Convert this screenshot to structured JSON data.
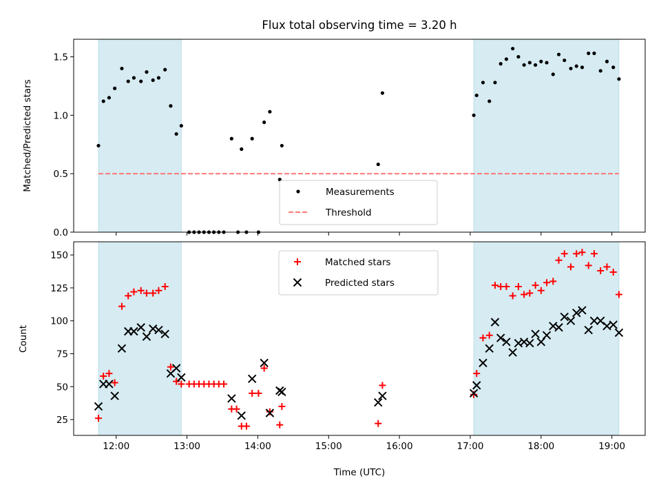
{
  "figure": {
    "title": "Flux total observing time = 3.20 h",
    "xlabel": "Time (UTC)"
  },
  "colors": {
    "shade": "#add8e6",
    "threshold": "#ff7777",
    "measurement": "#000000",
    "matched": "#ff0000",
    "predicted": "#000000"
  },
  "chart_data": [
    {
      "type": "scatter",
      "ylabel": "Matched/Predicted stars",
      "xlim": [
        11.4,
        19.47
      ],
      "ylim": [
        0.0,
        1.65
      ],
      "x_ticks": [
        12,
        13,
        14,
        15,
        16,
        17,
        18,
        19
      ],
      "y_ticks": [
        0.0,
        0.5,
        1.0,
        1.5
      ],
      "y_tick_labels": [
        "0.0",
        "0.5",
        "1.0",
        "1.5"
      ],
      "shaded_regions": [
        [
          11.75,
          12.92
        ],
        [
          17.05,
          19.1
        ]
      ],
      "threshold": {
        "name": "Threshold",
        "y": 0.5,
        "x_range": [
          11.75,
          19.1
        ],
        "style": "dashed"
      },
      "legend": {
        "location": "lower center",
        "entries": [
          "Measurements",
          "Threshold"
        ]
      },
      "series": [
        {
          "name": "Measurements",
          "marker": "dot",
          "points": [
            [
              11.75,
              0.74
            ],
            [
              11.82,
              1.12
            ],
            [
              11.9,
              1.15
            ],
            [
              11.98,
              1.23
            ],
            [
              12.08,
              1.4
            ],
            [
              12.17,
              1.29
            ],
            [
              12.25,
              1.32
            ],
            [
              12.35,
              1.29
            ],
            [
              12.43,
              1.37
            ],
            [
              12.52,
              1.3
            ],
            [
              12.6,
              1.32
            ],
            [
              12.69,
              1.39
            ],
            [
              12.77,
              1.08
            ],
            [
              12.85,
              0.84
            ],
            [
              12.92,
              0.91
            ],
            [
              13.03,
              0.0
            ],
            [
              13.1,
              0.0
            ],
            [
              13.17,
              0.0
            ],
            [
              13.24,
              0.0
            ],
            [
              13.31,
              0.0
            ],
            [
              13.38,
              0.0
            ],
            [
              13.45,
              0.0
            ],
            [
              13.52,
              0.0
            ],
            [
              13.63,
              0.8
            ],
            [
              13.72,
              0.0
            ],
            [
              13.77,
              0.71
            ],
            [
              13.84,
              0.0
            ],
            [
              13.92,
              0.8
            ],
            [
              14.01,
              0.0
            ],
            [
              14.09,
              0.94
            ],
            [
              14.17,
              1.03
            ],
            [
              14.31,
              0.45
            ],
            [
              14.34,
              0.74
            ],
            [
              15.7,
              0.58
            ],
            [
              15.76,
              1.19
            ],
            [
              17.05,
              1.0
            ],
            [
              17.09,
              1.17
            ],
            [
              17.18,
              1.28
            ],
            [
              17.27,
              1.12
            ],
            [
              17.35,
              1.28
            ],
            [
              17.43,
              1.44
            ],
            [
              17.51,
              1.48
            ],
            [
              17.6,
              1.57
            ],
            [
              17.68,
              1.5
            ],
            [
              17.76,
              1.43
            ],
            [
              17.84,
              1.45
            ],
            [
              17.92,
              1.43
            ],
            [
              18.0,
              1.46
            ],
            [
              18.08,
              1.45
            ],
            [
              18.17,
              1.35
            ],
            [
              18.25,
              1.52
            ],
            [
              18.33,
              1.47
            ],
            [
              18.42,
              1.4
            ],
            [
              18.5,
              1.42
            ],
            [
              18.58,
              1.41
            ],
            [
              18.67,
              1.53
            ],
            [
              18.75,
              1.53
            ],
            [
              18.84,
              1.38
            ],
            [
              18.93,
              1.46
            ],
            [
              19.02,
              1.41
            ],
            [
              19.1,
              1.31
            ]
          ]
        }
      ]
    },
    {
      "type": "scatter",
      "ylabel": "Count",
      "xlabel": "Time (UTC)",
      "xlim": [
        11.4,
        19.47
      ],
      "ylim": [
        13,
        160
      ],
      "x_ticks": [
        12,
        13,
        14,
        15,
        16,
        17,
        18,
        19
      ],
      "x_tick_labels": [
        "12:00",
        "13:00",
        "14:00",
        "15:00",
        "16:00",
        "17:00",
        "18:00",
        "19:00"
      ],
      "y_ticks": [
        25,
        50,
        75,
        100,
        125,
        150
      ],
      "y_tick_labels": [
        "25",
        "50",
        "75",
        "100",
        "125",
        "150"
      ],
      "shaded_regions": [
        [
          11.75,
          12.92
        ],
        [
          17.05,
          19.1
        ]
      ],
      "legend": {
        "location": "upper center",
        "entries": [
          "Matched stars",
          "Predicted stars"
        ]
      },
      "series": [
        {
          "name": "Matched stars",
          "marker": "plus",
          "points": [
            [
              11.75,
              26
            ],
            [
              11.82,
              58
            ],
            [
              11.9,
              60
            ],
            [
              11.98,
              53
            ],
            [
              12.08,
              111
            ],
            [
              12.17,
              119
            ],
            [
              12.25,
              122
            ],
            [
              12.35,
              123
            ],
            [
              12.43,
              121
            ],
            [
              12.52,
              121
            ],
            [
              12.6,
              123
            ],
            [
              12.69,
              126
            ],
            [
              12.77,
              65
            ],
            [
              12.85,
              54
            ],
            [
              12.92,
              52
            ],
            [
              13.03,
              52
            ],
            [
              13.1,
              52
            ],
            [
              13.17,
              52
            ],
            [
              13.24,
              52
            ],
            [
              13.31,
              52
            ],
            [
              13.38,
              52
            ],
            [
              13.45,
              52
            ],
            [
              13.52,
              52
            ],
            [
              13.63,
              33
            ],
            [
              13.7,
              33
            ],
            [
              13.77,
              20
            ],
            [
              13.84,
              20
            ],
            [
              13.92,
              45
            ],
            [
              14.01,
              45
            ],
            [
              14.09,
              64
            ],
            [
              14.17,
              31
            ],
            [
              14.31,
              21
            ],
            [
              14.34,
              35
            ],
            [
              15.7,
              22
            ],
            [
              15.76,
              51
            ],
            [
              17.05,
              44
            ],
            [
              17.09,
              60
            ],
            [
              17.18,
              87
            ],
            [
              17.27,
              89
            ],
            [
              17.35,
              127
            ],
            [
              17.43,
              126
            ],
            [
              17.51,
              126
            ],
            [
              17.6,
              119
            ],
            [
              17.68,
              126
            ],
            [
              17.76,
              120
            ],
            [
              17.84,
              121
            ],
            [
              17.92,
              127
            ],
            [
              18.0,
              123
            ],
            [
              18.08,
              129
            ],
            [
              18.17,
              130
            ],
            [
              18.25,
              146
            ],
            [
              18.33,
              151
            ],
            [
              18.42,
              141
            ],
            [
              18.5,
              151
            ],
            [
              18.58,
              152
            ],
            [
              18.67,
              142
            ],
            [
              18.75,
              151
            ],
            [
              18.84,
              138
            ],
            [
              18.93,
              141
            ],
            [
              19.02,
              137
            ],
            [
              19.1,
              120
            ]
          ]
        },
        {
          "name": "Predicted stars",
          "marker": "x",
          "points": [
            [
              11.75,
              35
            ],
            [
              11.82,
              52
            ],
            [
              11.9,
              52
            ],
            [
              11.98,
              43
            ],
            [
              12.08,
              79
            ],
            [
              12.17,
              92
            ],
            [
              12.25,
              92
            ],
            [
              12.35,
              95
            ],
            [
              12.43,
              88
            ],
            [
              12.52,
              94
            ],
            [
              12.6,
              93
            ],
            [
              12.69,
              90
            ],
            [
              12.77,
              60
            ],
            [
              12.85,
              64
            ],
            [
              12.92,
              57
            ],
            [
              13.63,
              41
            ],
            [
              13.77,
              28
            ],
            [
              13.92,
              56
            ],
            [
              14.09,
              68
            ],
            [
              14.17,
              30
            ],
            [
              14.31,
              47
            ],
            [
              14.34,
              46
            ],
            [
              15.7,
              38
            ],
            [
              15.76,
              43
            ],
            [
              17.05,
              45
            ],
            [
              17.09,
              51
            ],
            [
              17.18,
              68
            ],
            [
              17.27,
              79
            ],
            [
              17.35,
              99
            ],
            [
              17.43,
              87
            ],
            [
              17.51,
              84
            ],
            [
              17.6,
              76
            ],
            [
              17.68,
              83
            ],
            [
              17.76,
              84
            ],
            [
              17.84,
              83
            ],
            [
              17.92,
              90
            ],
            [
              18.0,
              84
            ],
            [
              18.08,
              89
            ],
            [
              18.17,
              96
            ],
            [
              18.25,
              95
            ],
            [
              18.33,
              103
            ],
            [
              18.42,
              100
            ],
            [
              18.5,
              106
            ],
            [
              18.58,
              108
            ],
            [
              18.67,
              93
            ],
            [
              18.75,
              100
            ],
            [
              18.84,
              100
            ],
            [
              18.93,
              96
            ],
            [
              19.02,
              97
            ],
            [
              19.1,
              91
            ]
          ]
        }
      ]
    }
  ]
}
